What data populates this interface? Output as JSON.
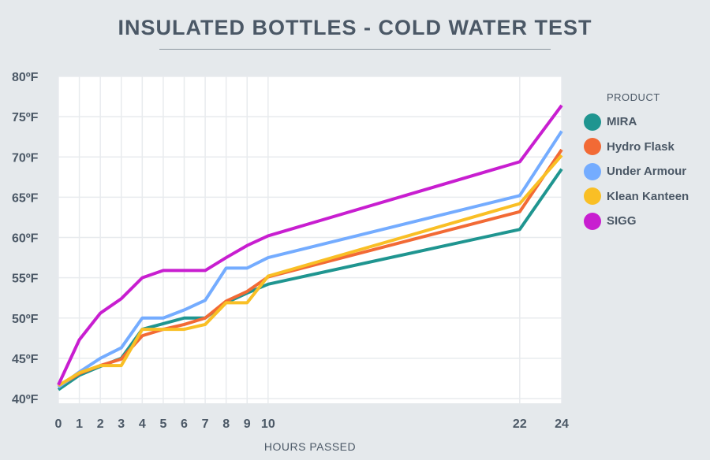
{
  "chart_data": {
    "type": "line",
    "title": "INSULATED BOTTLES - COLD WATER TEST",
    "xlabel": "HOURS PASSED",
    "ylabel": "",
    "x": [
      0,
      1,
      2,
      3,
      4,
      5,
      6,
      7,
      8,
      9,
      10,
      22,
      24
    ],
    "x_tick_labels": [
      "0",
      "1",
      "2",
      "3",
      "4",
      "5",
      "6",
      "7",
      "8",
      "9",
      "10",
      "22",
      "24"
    ],
    "ylim": [
      40,
      80
    ],
    "y_ticks": [
      40,
      45,
      50,
      55,
      60,
      65,
      70,
      75,
      80
    ],
    "y_tick_labels": [
      "40ºF",
      "45ºF",
      "50ºF",
      "55ºF",
      "60ºF",
      "65ºF",
      "70ºF",
      "75ºF",
      "80ºF"
    ],
    "grid": true,
    "legend_title": "PRODUCT",
    "legend_position": "right",
    "series": [
      {
        "name": "MIRA",
        "color": "#1f9590",
        "values": [
          41.1,
          42.9,
          44.0,
          45.0,
          48.6,
          49.3,
          50.0,
          50.0,
          51.9,
          53.1,
          54.2,
          61.0,
          68.5
        ]
      },
      {
        "name": "Hydro Flask",
        "color": "#f26a35",
        "values": [
          41.5,
          43.1,
          44.1,
          44.9,
          47.8,
          48.6,
          49.2,
          50.0,
          52.1,
          53.3,
          55.1,
          63.2,
          70.9
        ]
      },
      {
        "name": "Under Armour",
        "color": "#74acff",
        "values": [
          41.4,
          43.3,
          45.0,
          46.3,
          50.0,
          50.0,
          51.0,
          52.2,
          56.2,
          56.2,
          57.5,
          65.2,
          73.2
        ]
      },
      {
        "name": "Klean Kanteen",
        "color": "#f9bf25",
        "values": [
          41.6,
          43.2,
          44.1,
          44.1,
          48.6,
          48.6,
          48.6,
          49.2,
          51.9,
          51.9,
          55.2,
          64.2,
          70.2
        ]
      },
      {
        "name": "SIGG",
        "color": "#c81ed0",
        "values": [
          41.7,
          47.3,
          50.6,
          52.4,
          55.0,
          55.9,
          55.9,
          55.9,
          57.5,
          59.0,
          60.2,
          69.4,
          76.4
        ]
      }
    ]
  }
}
